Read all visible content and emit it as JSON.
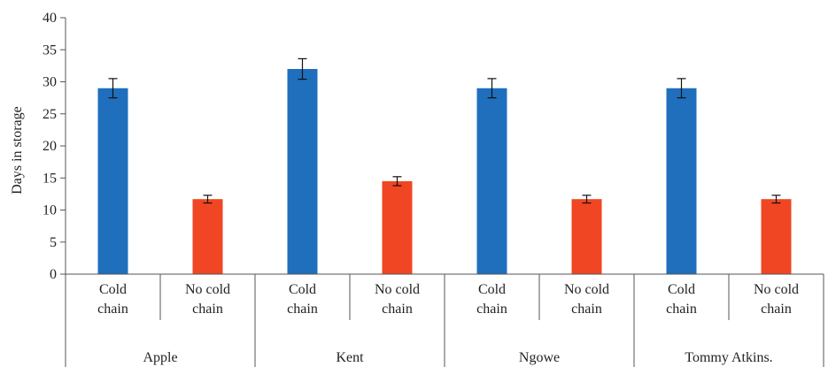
{
  "chart_data": {
    "type": "bar",
    "ylabel": "Days in storage",
    "ylim": [
      0,
      40
    ],
    "yticks": [
      0,
      5,
      10,
      15,
      20,
      25,
      30,
      35,
      40
    ],
    "grid": false,
    "groups": [
      {
        "name": "Apple",
        "bars": [
          {
            "label": [
              "Cold",
              "chain"
            ],
            "value": 29,
            "error": 1.5,
            "color": "#1f6fbd"
          },
          {
            "label": [
              "No cold",
              "chain"
            ],
            "value": 11.7,
            "error": 0.6,
            "color": "#f04623"
          }
        ]
      },
      {
        "name": "Kent",
        "bars": [
          {
            "label": [
              "Cold",
              "chain"
            ],
            "value": 32,
            "error": 1.6,
            "color": "#1f6fbd"
          },
          {
            "label": [
              "No cold",
              "chain"
            ],
            "value": 14.5,
            "error": 0.7,
            "color": "#f04623"
          }
        ]
      },
      {
        "name": "Ngowe",
        "bars": [
          {
            "label": [
              "Cold",
              "chain"
            ],
            "value": 29,
            "error": 1.5,
            "color": "#1f6fbd"
          },
          {
            "label": [
              "No cold",
              "chain"
            ],
            "value": 11.7,
            "error": 0.6,
            "color": "#f04623"
          }
        ]
      },
      {
        "name": "Tommy Atkins.",
        "bars": [
          {
            "label": [
              "Cold",
              "chain"
            ],
            "value": 29,
            "error": 1.5,
            "color": "#1f6fbd"
          },
          {
            "label": [
              "No cold",
              "chain"
            ],
            "value": 11.7,
            "error": 0.6,
            "color": "#f04623"
          }
        ]
      }
    ]
  }
}
